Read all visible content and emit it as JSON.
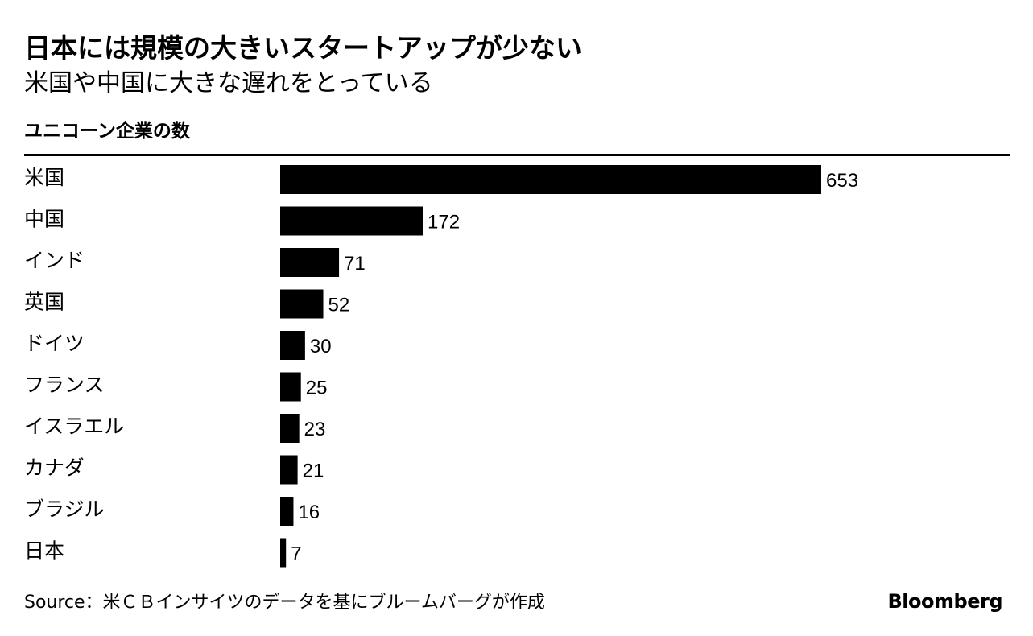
{
  "header": {
    "title": "日本には規模の大きいスタートアップが少ない",
    "subtitle": "米国や中国に大きな遅れをとっている"
  },
  "chart_data": {
    "type": "bar",
    "orientation": "horizontal",
    "title": "ユニコーン企業の数",
    "categories": [
      "米国",
      "中国",
      "インド",
      "英国",
      "ドイツ",
      "フランス",
      "イスラエル",
      "カナダ",
      "ブラジル",
      "日本"
    ],
    "values": [
      653,
      172,
      71,
      52,
      30,
      25,
      23,
      21,
      16,
      7
    ],
    "xlim": [
      0,
      653
    ],
    "bar_color": "#000000",
    "grid": false,
    "data_labels": true
  },
  "footer": {
    "source": "Source：米ＣＢインサイツのデータを基にブルームバーグが作成",
    "brand": "Bloomberg"
  }
}
